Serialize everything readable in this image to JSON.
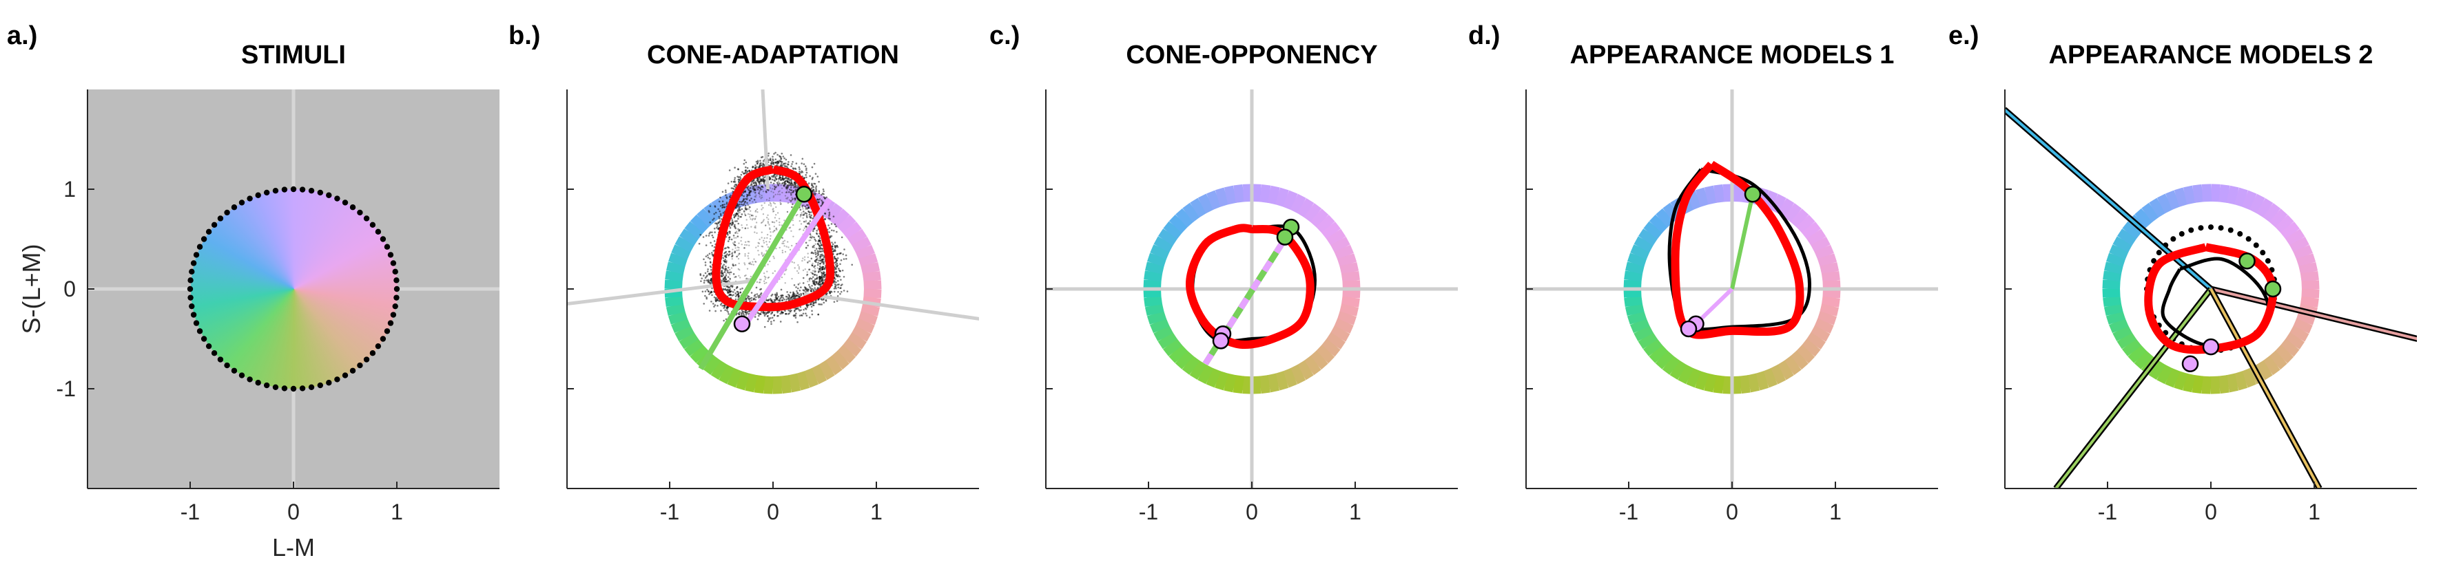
{
  "figure": {
    "axis_color": "#262626",
    "gray_bg": "#bdbdbd",
    "line_gray": "#cfcfcf",
    "red": "#ff0000",
    "green_marker": "#77d05a",
    "pink_marker": "#e6a3ff"
  },
  "chart_data": [
    {
      "panel_label": "a.)",
      "title": "STIMULI",
      "type": "scatter",
      "xlabel": "L-M",
      "ylabel": "S-(L+M)",
      "xlim": [
        -2,
        2
      ],
      "ylim": [
        -2,
        2
      ],
      "xticks": [
        "-1",
        "0",
        "1"
      ],
      "yticks": [
        "1",
        "0",
        "-1"
      ],
      "background": "gray",
      "stimulus_disc_radius": 1,
      "stimulus_ring_points": 72,
      "reference_lines": "axes"
    },
    {
      "panel_label": "b.)",
      "title": "CONE-ADAPTATION",
      "type": "line",
      "xlim": [
        -2,
        2
      ],
      "ylim": [
        -2,
        2
      ],
      "xticks": [
        "-1",
        "0",
        "1"
      ],
      "color_ring_radius": [
        0.88,
        1.05
      ],
      "gray_lines": [
        [
          [
            -0.05,
            1.0
          ],
          [
            -0.1,
            2.0
          ]
        ],
        [
          [
            0.3,
            -0.05
          ],
          [
            2.0,
            -0.3
          ]
        ],
        [
          [
            -0.2,
            0.08
          ],
          [
            -2.0,
            -0.15
          ]
        ]
      ],
      "response_contour": [
        [
          0.0,
          1.2
        ],
        [
          0.25,
          1.1
        ],
        [
          0.45,
          0.7
        ],
        [
          0.55,
          0.25
        ],
        [
          0.5,
          0.0
        ],
        [
          0.2,
          -0.15
        ],
        [
          -0.1,
          -0.18
        ],
        [
          -0.45,
          -0.12
        ],
        [
          -0.55,
          0.15
        ],
        [
          -0.45,
          0.7
        ],
        [
          -0.25,
          1.1
        ],
        [
          0.0,
          1.2
        ]
      ],
      "line_green": [
        [
          -0.7,
          -0.8
        ],
        [
          0.3,
          0.95
        ]
      ],
      "line_pink": [
        [
          -0.25,
          -0.33
        ],
        [
          0.55,
          0.9
        ]
      ],
      "markers": {
        "green": [
          0.3,
          0.95
        ],
        "pink": [
          -0.3,
          -0.35
        ]
      }
    },
    {
      "panel_label": "c.)",
      "title": "CONE-OPPONENCY",
      "type": "line",
      "xlim": [
        -2,
        2
      ],
      "ylim": [
        -2,
        2
      ],
      "xticks": [
        "-1",
        "0",
        "1"
      ],
      "color_ring_radius": [
        0.88,
        1.05
      ],
      "reference_lines": "axes",
      "black_contour": [
        [
          0.0,
          0.6
        ],
        [
          0.4,
          0.6
        ],
        [
          0.6,
          0.2
        ],
        [
          0.55,
          -0.2
        ],
        [
          0.3,
          -0.45
        ],
        [
          0.0,
          -0.5
        ],
        [
          -0.35,
          -0.5
        ],
        [
          -0.55,
          -0.2
        ],
        [
          -0.55,
          0.2
        ],
        [
          -0.35,
          0.55
        ],
        [
          0.0,
          0.6
        ]
      ],
      "red_contour": [
        [
          0.0,
          0.6
        ],
        [
          0.3,
          0.55
        ],
        [
          0.55,
          0.15
        ],
        [
          0.5,
          -0.3
        ],
        [
          0.2,
          -0.5
        ],
        [
          -0.15,
          -0.55
        ],
        [
          -0.45,
          -0.35
        ],
        [
          -0.6,
          0.05
        ],
        [
          -0.45,
          0.45
        ],
        [
          -0.15,
          0.6
        ],
        [
          0.0,
          0.6
        ]
      ],
      "line_green": [
        [
          -0.45,
          -0.75
        ],
        [
          0.38,
          0.6
        ]
      ],
      "markers": {
        "green": [
          [
            0.38,
            0.62
          ],
          [
            0.32,
            0.52
          ]
        ],
        "pink": [
          [
            -0.28,
            -0.45
          ],
          [
            -0.3,
            -0.52
          ]
        ]
      }
    },
    {
      "panel_label": "d.)",
      "title": "APPEARANCE MODELS 1",
      "type": "line",
      "xlim": [
        -2,
        2
      ],
      "ylim": [
        -2,
        2
      ],
      "xticks": [
        "-1",
        "0",
        "1"
      ],
      "color_ring_radius": [
        0.88,
        1.05
      ],
      "reference_lines": "axes",
      "black_contour": [
        [
          -0.3,
          1.2
        ],
        [
          0.2,
          1.05
        ],
        [
          0.6,
          0.55
        ],
        [
          0.75,
          0.05
        ],
        [
          0.6,
          -0.3
        ],
        [
          0.0,
          -0.38
        ],
        [
          -0.45,
          -0.35
        ],
        [
          -0.6,
          0.2
        ],
        [
          -0.55,
          0.8
        ],
        [
          -0.3,
          1.2
        ]
      ],
      "red_contour": [
        [
          -0.2,
          1.25
        ],
        [
          0.15,
          1.0
        ],
        [
          0.45,
          0.6
        ],
        [
          0.65,
          0.05
        ],
        [
          0.55,
          -0.38
        ],
        [
          0.0,
          -0.42
        ],
        [
          -0.45,
          -0.4
        ],
        [
          -0.55,
          0.3
        ],
        [
          -0.45,
          0.9
        ],
        [
          -0.2,
          1.25
        ]
      ],
      "line_green": [
        [
          0.0,
          0.0
        ],
        [
          0.2,
          0.95
        ]
      ],
      "line_pink": [
        [
          0.0,
          0.0
        ],
        [
          -0.38,
          -0.38
        ]
      ],
      "markers": {
        "green": [
          0.2,
          0.95
        ],
        "pink": [
          [
            -0.35,
            -0.35
          ],
          [
            -0.42,
            -0.4
          ]
        ]
      }
    },
    {
      "panel_label": "e.)",
      "title": "APPEARANCE MODELS 2",
      "type": "line",
      "xlim": [
        -2,
        2
      ],
      "ylim": [
        -2,
        2
      ],
      "xticks": [
        "-1",
        "0",
        "1"
      ],
      "color_ring_radius": [
        0.88,
        1.05
      ],
      "dotted_circle_radius": 0.62,
      "black_contour": [
        [
          -0.3,
          0.2
        ],
        [
          0.1,
          0.3
        ],
        [
          0.45,
          0.05
        ],
        [
          0.55,
          -0.25
        ],
        [
          0.3,
          -0.55
        ],
        [
          -0.1,
          -0.55
        ],
        [
          -0.45,
          -0.3
        ],
        [
          -0.4,
          0.0
        ],
        [
          -0.3,
          0.2
        ]
      ],
      "red_contour": [
        [
          -0.05,
          0.42
        ],
        [
          0.4,
          0.3
        ],
        [
          0.6,
          0.0
        ],
        [
          0.45,
          -0.45
        ],
        [
          0.0,
          -0.6
        ],
        [
          -0.4,
          -0.55
        ],
        [
          -0.6,
          -0.2
        ],
        [
          -0.5,
          0.25
        ],
        [
          -0.05,
          0.42
        ]
      ],
      "vector_lines": [
        {
          "color": "#3fb8e6",
          "points": [
            [
              0.0,
              0.0
            ],
            [
              -2.0,
              1.8
            ]
          ]
        },
        {
          "color": "#e6a0a0",
          "points": [
            [
              0.0,
              0.0
            ],
            [
              2.0,
              -0.5
            ]
          ]
        },
        {
          "color": "#9ad060",
          "points": [
            [
              0.0,
              0.0
            ],
            [
              -1.5,
              -2.0
            ]
          ]
        },
        {
          "color": "#e6c060",
          "points": [
            [
              0.0,
              0.0
            ],
            [
              1.05,
              -2.0
            ]
          ]
        }
      ],
      "markers": {
        "green": [
          [
            0.35,
            0.28
          ],
          [
            0.6,
            0.0
          ]
        ],
        "pink": [
          [
            0.0,
            -0.58
          ],
          [
            -0.2,
            -0.75
          ]
        ]
      }
    }
  ]
}
